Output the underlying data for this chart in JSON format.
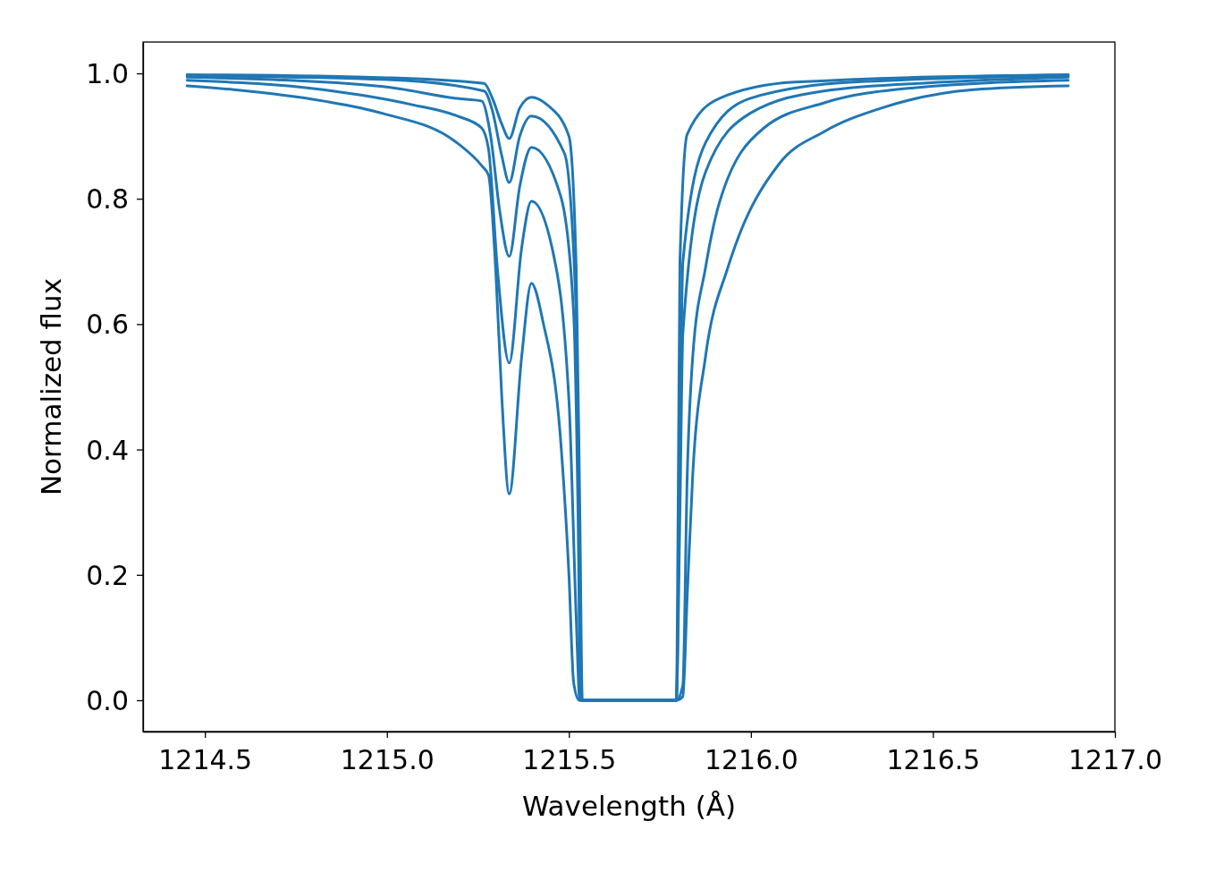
{
  "chart_data": {
    "type": "line",
    "xlabel": "Wavelength (Å)",
    "ylabel": "Normalized flux",
    "xlim": [
      1214.33,
      1217.0
    ],
    "ylim": [
      -0.05,
      1.05
    ],
    "xticks": [
      {
        "value": 1214.5,
        "label": "1214.5"
      },
      {
        "value": 1215,
        "label": "1215.0"
      },
      {
        "value": 1215.5,
        "label": "1215.5"
      },
      {
        "value": 1216,
        "label": "1216.0"
      },
      {
        "value": 1216.5,
        "label": "1216.5"
      },
      {
        "value": 1217,
        "label": "1217.0"
      }
    ],
    "yticks": [
      {
        "value": 0,
        "label": "0.0"
      },
      {
        "value": 0.2,
        "label": "0.2"
      },
      {
        "value": 0.4,
        "label": "0.4"
      },
      {
        "value": 0.6,
        "label": "0.6"
      },
      {
        "value": 0.8,
        "label": "0.8"
      },
      {
        "value": 1,
        "label": "1.0"
      }
    ],
    "grid": false,
    "marker": "none",
    "line_style": "solid",
    "series": [
      {
        "color": "#1f77b4",
        "x": [
          1214.451,
          1214.579,
          1214.824,
          1214.989,
          1215.193,
          1215.26,
          1215.279,
          1215.299,
          1215.316,
          1215.336,
          1215.37,
          1215.397,
          1215.429,
          1215.478,
          1215.5,
          1215.513,
          1215.528,
          1215.795,
          1215.813,
          1215.825,
          1215.84,
          1215.875,
          1215.936,
          1215.955,
          1216.078,
          1216.201,
          1216.366,
          1216.612,
          1216.872
        ],
        "values": [
          0.98,
          0.974,
          0.956,
          0.936,
          0.889,
          0.853,
          0.838,
          0.685,
          0.479,
          0.329,
          0.547,
          0.665,
          0.603,
          0.409,
          0.201,
          0.028,
          0,
          0,
          0.006,
          0.167,
          0.358,
          0.547,
          0.689,
          0.722,
          0.856,
          0.907,
          0.946,
          0.974,
          0.98
        ]
      },
      {
        "color": "#1f77b4",
        "x": [
          1214.451,
          1214.824,
          1215.07,
          1215.193,
          1215.26,
          1215.279,
          1215.304,
          1215.336,
          1215.37,
          1215.397,
          1215.454,
          1215.5,
          1215.52,
          1215.53,
          1215.795,
          1215.813,
          1215.825,
          1215.84,
          1215.875,
          1215.913,
          1216.036,
          1216.201,
          1216.447,
          1216.872
        ],
        "values": [
          0.989,
          0.974,
          0.95,
          0.932,
          0.913,
          0.88,
          0.685,
          0.538,
          0.721,
          0.796,
          0.721,
          0.479,
          0.132,
          0,
          0,
          0.024,
          0.358,
          0.547,
          0.689,
          0.793,
          0.913,
          0.953,
          0.977,
          0.989
        ]
      },
      {
        "color": "#1f77b4",
        "x": [
          1214.451,
          1214.989,
          1215.193,
          1215.26,
          1215.285,
          1215.31,
          1215.336,
          1215.365,
          1215.397,
          1215.478,
          1215.513,
          1215.525,
          1215.532,
          1215.795,
          1215.805,
          1215.813,
          1215.875,
          1215.997,
          1216.201,
          1216.528,
          1216.872
        ],
        "values": [
          0.994,
          0.979,
          0.96,
          0.956,
          0.9,
          0.78,
          0.708,
          0.82,
          0.882,
          0.803,
          0.617,
          0.3,
          0,
          0,
          0.3,
          0.585,
          0.842,
          0.936,
          0.972,
          0.986,
          0.994
        ]
      },
      {
        "color": "#1f77b4",
        "x": [
          1214.451,
          1215.0,
          1215.267,
          1215.29,
          1215.315,
          1215.336,
          1215.365,
          1215.397,
          1215.488,
          1215.52,
          1215.528,
          1215.535,
          1215.795,
          1215.803,
          1215.813,
          1215.875,
          1215.997,
          1216.282,
          1216.872
        ],
        "values": [
          0.996,
          0.99,
          0.972,
          0.94,
          0.87,
          0.826,
          0.9,
          0.932,
          0.872,
          0.617,
          0.3,
          0,
          0,
          0.3,
          0.699,
          0.889,
          0.96,
          0.986,
          0.996
        ]
      },
      {
        "color": "#1f77b4",
        "x": [
          1214.451,
          1215.0,
          1215.267,
          1215.29,
          1215.315,
          1215.336,
          1215.365,
          1215.397,
          1215.44,
          1215.5,
          1215.52,
          1215.53,
          1215.537,
          1215.795,
          1215.8,
          1215.805,
          1215.825,
          1215.913,
          1216.12,
          1216.872
        ],
        "values": [
          0.998,
          0.993,
          0.984,
          0.96,
          0.92,
          0.896,
          0.945,
          0.962,
          0.95,
          0.9,
          0.689,
          0.3,
          0,
          0,
          0.3,
          0.699,
          0.903,
          0.96,
          0.986,
          0.998
        ]
      }
    ]
  }
}
